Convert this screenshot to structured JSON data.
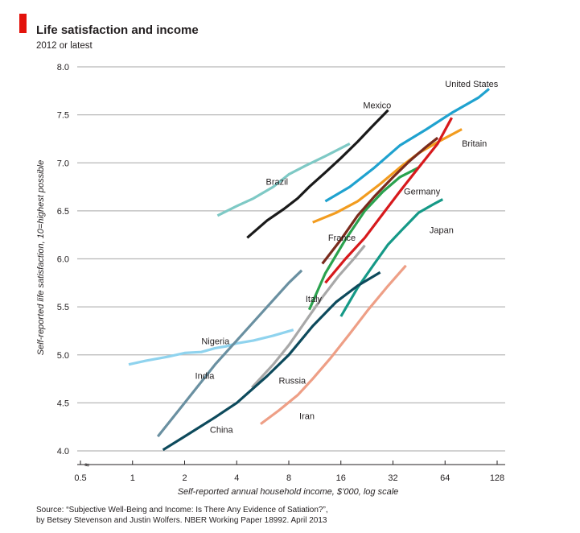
{
  "header": {
    "title": "Life satisfaction and income",
    "subtitle": "2012 or latest"
  },
  "footer": {
    "source_line1": "Source: “Subjective Well-Being and Income: Is There Any Evidence of Satiation?”,",
    "source_line2": "by Betsey Stevenson and Justin Wolfers. NBER Working Paper 18992. April 2013"
  },
  "colors": {
    "accent": "#e3120b",
    "grid": "#b7b7b7",
    "text": "#231f20"
  },
  "chart_data": {
    "type": "line",
    "title": "Life satisfaction and income",
    "subtitle": "2012 or latest",
    "xlabel": "Self-reported annual household income, $’000, log scale",
    "ylabel": "Self-reported life satisfaction, 10=highest possible",
    "x_scale": "log2",
    "xlim": [
      0.5,
      128
    ],
    "ylim": [
      4.0,
      8.0
    ],
    "x_ticks": [
      0.5,
      1,
      2,
      4,
      8,
      16,
      32,
      64,
      128
    ],
    "x_tick_labels": [
      "0.5",
      "1",
      "2",
      "4",
      "8",
      "16",
      "32",
      "64",
      "128"
    ],
    "y_ticks": [
      4.0,
      4.5,
      5.0,
      5.5,
      6.0,
      6.5,
      7.0,
      7.5,
      8.0
    ],
    "y_tick_labels": [
      "4.0",
      "4.5",
      "5.0",
      "5.5",
      "6.0",
      "6.5",
      "7.0",
      "7.5",
      "8.0"
    ],
    "y_break_marker": "≈",
    "grid": true,
    "legend": "direct labels",
    "series": [
      {
        "name": "Brazil",
        "color": "#7ec9c5",
        "x": [
          3.1,
          4.0,
          5.0,
          6.5,
          8.0,
          10.0,
          13.0,
          18.0
        ],
        "y": [
          6.45,
          6.55,
          6.63,
          6.75,
          6.88,
          6.97,
          7.07,
          7.2
        ]
      },
      {
        "name": "Mexico",
        "color": "#1a1a1a",
        "x": [
          4.6,
          6.0,
          7.5,
          9.0,
          10.5,
          13.0,
          16.0,
          20.0,
          24.0,
          30.0
        ],
        "y": [
          6.22,
          6.4,
          6.52,
          6.63,
          6.75,
          6.9,
          7.05,
          7.22,
          7.37,
          7.55
        ]
      },
      {
        "name": "United States",
        "color": "#1fa2cf",
        "x": [
          13.0,
          18.0,
          25.0,
          35.0,
          50.0,
          70.0,
          100.0,
          115.0
        ],
        "y": [
          6.6,
          6.75,
          6.95,
          7.18,
          7.35,
          7.52,
          7.68,
          7.77
        ]
      },
      {
        "name": "Britain",
        "color": "#f29c1f",
        "x": [
          11.0,
          15.0,
          20.0,
          27.0,
          35.0,
          45.0,
          60.0,
          80.0
        ],
        "y": [
          6.38,
          6.48,
          6.6,
          6.78,
          6.95,
          7.1,
          7.23,
          7.35
        ]
      },
      {
        "name": "Germany",
        "color": "#2aa24e",
        "x": [
          10.5,
          13.0,
          17.0,
          22.0,
          28.0,
          35.0,
          45.0
        ],
        "y": [
          5.47,
          5.85,
          6.2,
          6.5,
          6.7,
          6.85,
          6.95
        ]
      },
      {
        "name": "France",
        "color": "#7a2b1d",
        "x": [
          12.5,
          16.0,
          20.0,
          25.0,
          32.0,
          40.0,
          50.0,
          58.0
        ],
        "y": [
          5.95,
          6.2,
          6.45,
          6.65,
          6.85,
          7.02,
          7.17,
          7.26
        ]
      },
      {
        "name": "",
        "color": "#d7191c",
        "x": [
          13.0,
          17.0,
          22.0,
          28.0,
          35.0,
          45.0,
          58.0,
          70.0
        ],
        "y": [
          5.75,
          6.0,
          6.22,
          6.47,
          6.7,
          6.95,
          7.2,
          7.47
        ]
      },
      {
        "name": "Japan",
        "color": "#159987",
        "x": [
          16.0,
          20.0,
          25.0,
          30.0,
          36.0,
          45.0,
          55.0,
          62.0
        ],
        "y": [
          5.4,
          5.7,
          5.95,
          6.15,
          6.3,
          6.48,
          6.57,
          6.62
        ]
      },
      {
        "name": "Italy",
        "color": "#a8a8a8",
        "x": [
          4.9,
          6.5,
          8.0,
          10.0,
          12.5,
          15.5,
          19.0,
          22.0
        ],
        "y": [
          4.66,
          4.9,
          5.1,
          5.35,
          5.6,
          5.82,
          6.0,
          6.14
        ]
      },
      {
        "name": "Nigeria",
        "color": "#8fd3ee",
        "x": [
          0.95,
          1.2,
          1.6,
          2.0,
          2.5,
          3.0,
          3.5,
          4.0,
          5.0,
          6.5,
          8.5
        ],
        "y": [
          4.9,
          4.94,
          4.98,
          5.02,
          5.03,
          5.07,
          5.09,
          5.12,
          5.15,
          5.2,
          5.26
        ]
      },
      {
        "name": "India",
        "color": "#6a90a1",
        "x": [
          1.4,
          2.0,
          3.0,
          4.0,
          6.0,
          8.0,
          9.5
        ],
        "y": [
          4.15,
          4.5,
          4.9,
          5.15,
          5.5,
          5.75,
          5.88
        ]
      },
      {
        "name": "China",
        "color": "#0d4a5c",
        "x": [
          1.5,
          2.0,
          3.0,
          4.0,
          6.0,
          8.0,
          11.0,
          15.0,
          20.0,
          27.0
        ],
        "y": [
          4.01,
          4.15,
          4.35,
          4.5,
          4.78,
          5.0,
          5.3,
          5.55,
          5.72,
          5.86
        ]
      },
      {
        "name": "Russia",
        "color": "#0d4a5c",
        "x": [],
        "y": []
      },
      {
        "name": "Iran",
        "color": "#ee9f86",
        "x": [
          5.5,
          7.0,
          9.0,
          11.0,
          14.0,
          18.0,
          23.0,
          30.0,
          38.0
        ],
        "y": [
          4.28,
          4.42,
          4.58,
          4.75,
          4.97,
          5.22,
          5.47,
          5.72,
          5.93
        ]
      }
    ],
    "labels": [
      {
        "text": "United States",
        "x": 64.0,
        "y": 7.79
      },
      {
        "text": "Mexico",
        "x": 21.5,
        "y": 7.57
      },
      {
        "text": "Britain",
        "x": 80.0,
        "y": 7.17
      },
      {
        "text": "Brazil",
        "x": 5.9,
        "y": 6.77
      },
      {
        "text": "Germany",
        "x": 37.0,
        "y": 6.67
      },
      {
        "text": "Japan",
        "x": 52.0,
        "y": 6.27
      },
      {
        "text": "France",
        "x": 13.5,
        "y": 6.19
      },
      {
        "text": "Italy",
        "x": 10.0,
        "y": 5.55
      },
      {
        "text": "Nigeria",
        "x": 2.5,
        "y": 5.11
      },
      {
        "text": "India",
        "x": 2.3,
        "y": 4.75
      },
      {
        "text": "Russia",
        "x": 7.0,
        "y": 4.7
      },
      {
        "text": "Iran",
        "x": 9.2,
        "y": 4.33
      },
      {
        "text": "China",
        "x": 2.8,
        "y": 4.19
      }
    ]
  }
}
